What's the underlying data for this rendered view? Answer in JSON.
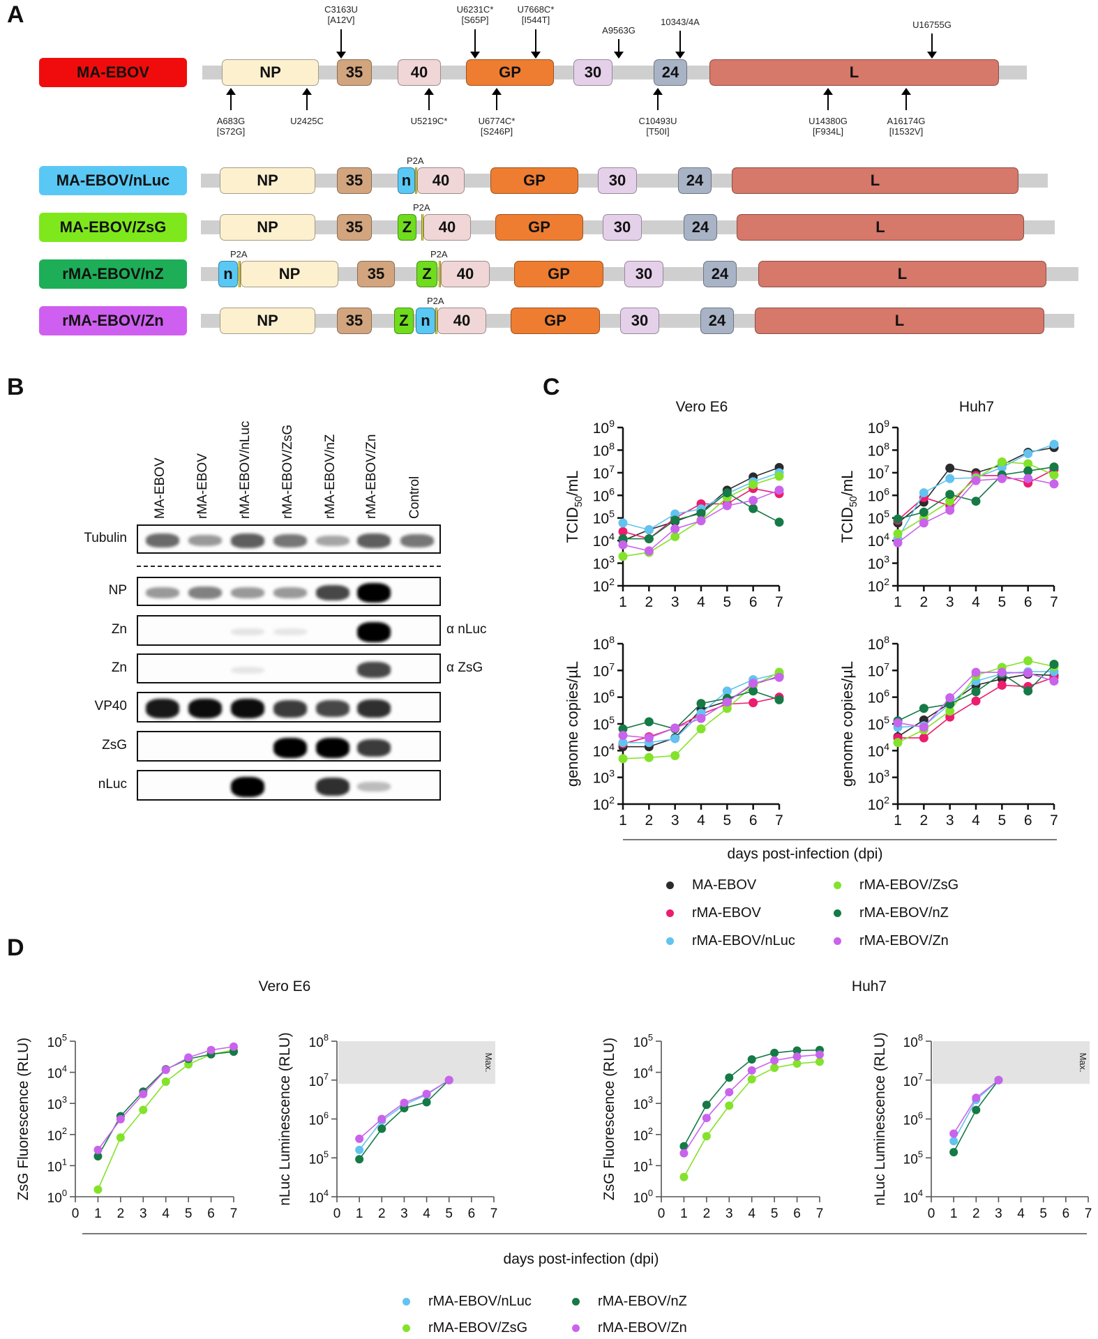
{
  "panels": {
    "a": "A",
    "b": "B",
    "c": "C",
    "d": "D"
  },
  "colors": {
    "MA-EBOV": "#2b2b2b",
    "rMA-EBOV": "#ec1c6e",
    "rMA-EBOV/nLuc": "#62c3f0",
    "rMA-EBOV/ZsG": "#83e22a",
    "rMA-EBOV/nZ": "#157a45",
    "rMA-EBOV/Zn": "#c963ec"
  },
  "panel_a": {
    "mutations_above": [
      {
        "text": "C3163U",
        "sub": "[A12V]"
      },
      {
        "text": "U6231C*",
        "sub": "[S65P]"
      },
      {
        "text": "U7668C*",
        "sub": "[I544T]"
      },
      {
        "text": "A9563G",
        "sub": ""
      },
      {
        "text": "10343/4A",
        "sub": ""
      },
      {
        "text": "U16755G",
        "sub": ""
      }
    ],
    "mutations_below": [
      {
        "text": "A683G",
        "sub": "[S72G]"
      },
      {
        "text": "U2425C",
        "sub": ""
      },
      {
        "text": "U5219C*",
        "sub": ""
      },
      {
        "text": "U6774C*",
        "sub": "[S246P]"
      },
      {
        "text": "C10493U",
        "sub": "[T50I]"
      },
      {
        "text": "U14380G",
        "sub": "[F934L]"
      },
      {
        "text": "A16174G",
        "sub": "[I1532V]"
      }
    ],
    "p2a_label": "P2A",
    "constructs": [
      {
        "name": "MA-EBOV",
        "color": "#f00c0c",
        "genes": [
          "NP",
          "35",
          "40",
          "GP",
          "30",
          "24",
          "L"
        ]
      },
      {
        "name": "MA-EBOV/nLuc",
        "color": "#5ac8f5",
        "genes": [
          "NP",
          "35",
          "n",
          "40",
          "GP",
          "30",
          "24",
          "L"
        ]
      },
      {
        "name": "MA-EBOV/ZsG",
        "color": "#7ee81c",
        "genes": [
          "NP",
          "35",
          "Z",
          "40",
          "GP",
          "30",
          "24",
          "L"
        ]
      },
      {
        "name": "rMA-EBOV/nZ",
        "color": "#1dae57",
        "genes": [
          "n",
          "NP",
          "35",
          "Z",
          "40",
          "GP",
          "30",
          "24",
          "L"
        ]
      },
      {
        "name": "rMA-EBOV/Zn",
        "color": "#cf5ff0",
        "genes": [
          "NP",
          "35",
          "Z",
          "n",
          "40",
          "GP",
          "30",
          "24",
          "L"
        ]
      }
    ],
    "gene_colors": {
      "NP": "#fdf0cf",
      "35": "#d2a57e",
      "40": "#f0d6d6",
      "GP": "#ee7d31",
      "30": "#e5d0ea",
      "24": "#a8b3c6",
      "L": "#d6786a",
      "n": "#5ac8f5",
      "Z": "#6fdc1d"
    }
  },
  "panel_b": {
    "lanes": [
      "MA-EBOV",
      "rMA-EBOV",
      "rMA-EBOV/nLuc",
      "rMA-EBOV/ZsG",
      "rMA-EBOV/nZ",
      "rMA-EBOV/Zn",
      "Control"
    ],
    "rows": [
      {
        "label": "Tubulin",
        "side": "",
        "intensity": [
          0.55,
          0.35,
          0.6,
          0.5,
          0.3,
          0.6,
          0.5
        ]
      },
      {
        "label": "NP",
        "side": "",
        "intensity": [
          0.35,
          0.45,
          0.35,
          0.35,
          0.7,
          1.0,
          0
        ]
      },
      {
        "label": "Zn",
        "side": "α nLuc",
        "intensity": [
          0,
          0,
          0.03,
          0.02,
          0,
          1.0,
          0
        ]
      },
      {
        "label": "Zn",
        "side": "α ZsG",
        "intensity": [
          0,
          0,
          0.02,
          0,
          0,
          0.7,
          0
        ]
      },
      {
        "label": "VP40",
        "side": "",
        "intensity": [
          0.9,
          0.95,
          0.95,
          0.75,
          0.7,
          0.8,
          0
        ]
      },
      {
        "label": "ZsG",
        "side": "",
        "intensity": [
          0,
          0,
          0,
          1.0,
          1.0,
          0.75,
          0
        ]
      },
      {
        "label": "nLuc",
        "side": "",
        "intensity": [
          0,
          0,
          1.0,
          0,
          0.8,
          0.2,
          0
        ]
      }
    ]
  },
  "panel_c": {
    "xlabel": "days post-infection (dpi)",
    "legend": [
      "MA-EBOV",
      "rMA-EBOV",
      "rMA-EBOV/nLuc",
      "rMA-EBOV/ZsG",
      "rMA-EBOV/nZ",
      "rMA-EBOV/Zn"
    ]
  },
  "panel_d": {
    "xlabel": "days post-infection (dpi)",
    "titles": [
      "Vero E6",
      "Huh7"
    ],
    "max_label": "Max.",
    "legend": [
      "rMA-EBOV/nLuc",
      "rMA-EBOV/nZ",
      "rMA-EBOV/ZsG",
      "rMA-EBOV/Zn"
    ]
  },
  "chart_data": [
    {
      "type": "line",
      "title": "Vero E6",
      "ylabel": "TCID50/mL",
      "xlabel": "days post-infection (dpi)",
      "yscale": "log",
      "ylim": [
        100,
        1000000000
      ],
      "x": [
        1,
        2,
        3,
        4,
        5,
        6,
        7
      ],
      "series": [
        {
          "name": "MA-EBOV",
          "values": [
            10000,
            30000,
            70000,
            180000,
            1700000,
            6500000,
            17000000
          ]
        },
        {
          "name": "rMA-EBOV",
          "values": [
            25000,
            12000,
            100000,
            420000,
            420000,
            2000000,
            1200000
          ]
        },
        {
          "name": "rMA-EBOV/nLuc",
          "values": [
            60000,
            30000,
            150000,
            250000,
            1200000,
            4000000,
            10000000
          ]
        },
        {
          "name": "rMA-EBOV/ZsG",
          "values": [
            2000,
            3000,
            15000,
            80000,
            800000,
            3000000,
            7000000
          ]
        },
        {
          "name": "rMA-EBOV/nZ",
          "values": [
            12000,
            12000,
            80000,
            160000,
            1300000,
            260000,
            65000
          ]
        },
        {
          "name": "rMA-EBOV/Zn",
          "values": [
            6500,
            3500,
            33000,
            75000,
            350000,
            600000,
            1700000
          ]
        }
      ]
    },
    {
      "type": "line",
      "title": "Huh7",
      "ylabel": "TCID50/mL",
      "xlabel": "days post-infection (dpi)",
      "yscale": "log",
      "ylim": [
        100,
        1000000000
      ],
      "x": [
        1,
        2,
        3,
        4,
        5,
        6,
        7
      ],
      "series": [
        {
          "name": "MA-EBOV",
          "values": [
            60000,
            500000,
            16000000,
            10000000,
            22000000,
            80000000,
            130000000
          ]
        },
        {
          "name": "rMA-EBOV",
          "values": [
            80000,
            800000,
            350000,
            7500000,
            7500000,
            3500000,
            14000000
          ]
        },
        {
          "name": "rMA-EBOV/nLuc",
          "values": [
            12000,
            1300000,
            5500000,
            6000000,
            17000000,
            70000000,
            180000000
          ]
        },
        {
          "name": "rMA-EBOV/ZsG",
          "values": [
            20000,
            100000,
            550000,
            5500000,
            30000000,
            25000000,
            8000000
          ]
        },
        {
          "name": "rMA-EBOV/nZ",
          "values": [
            90000,
            180000,
            1100000,
            550000,
            8000000,
            12000000,
            18000000
          ]
        },
        {
          "name": "rMA-EBOV/Zn",
          "values": [
            8000,
            60000,
            220000,
            4500000,
            5500000,
            5500000,
            3200000
          ]
        }
      ]
    },
    {
      "type": "line",
      "title": "Vero E6",
      "ylabel": "genome copies/µL",
      "xlabel": "days post-infection (dpi)",
      "yscale": "log",
      "ylim": [
        100,
        100000000
      ],
      "x": [
        1,
        2,
        3,
        4,
        5,
        6,
        7
      ],
      "series": [
        {
          "name": "MA-EBOV",
          "values": [
            14000,
            14000,
            30000,
            350000,
            700000,
            3000000,
            6000000
          ]
        },
        {
          "name": "rMA-EBOV",
          "values": [
            18000,
            33000,
            70000,
            230000,
            550000,
            620000,
            1000000
          ]
        },
        {
          "name": "rMA-EBOV/nLuc",
          "values": [
            20000,
            20000,
            28000,
            250000,
            1700000,
            4500000,
            7500000
          ]
        },
        {
          "name": "rMA-EBOV/ZsG",
          "values": [
            5000,
            5500,
            6500,
            65000,
            380000,
            2700000,
            8500000
          ]
        },
        {
          "name": "rMA-EBOV/nZ",
          "values": [
            65000,
            120000,
            65000,
            580000,
            900000,
            1700000,
            800000
          ]
        },
        {
          "name": "rMA-EBOV/Zn",
          "values": [
            37000,
            30000,
            70000,
            160000,
            650000,
            3300000,
            5500000
          ]
        }
      ]
    },
    {
      "type": "line",
      "title": "Huh7",
      "ylabel": "genome copies/µL",
      "xlabel": "days post-infection (dpi)",
      "yscale": "log",
      "ylim": [
        100,
        100000000
      ],
      "x": [
        1,
        2,
        3,
        4,
        5,
        6,
        7
      ],
      "series": [
        {
          "name": "MA-EBOV",
          "values": [
            33000,
            140000,
            600000,
            2800000,
            4800000,
            7200000,
            6500000
          ]
        },
        {
          "name": "rMA-EBOV",
          "values": [
            30000,
            30000,
            180000,
            720000,
            2800000,
            2500000,
            5500000
          ]
        },
        {
          "name": "rMA-EBOV/nLuc",
          "values": [
            75000,
            85000,
            550000,
            4000000,
            7500000,
            9000000,
            9000000
          ]
        },
        {
          "name": "rMA-EBOV/ZsG",
          "values": [
            20000,
            60000,
            300000,
            6500000,
            13000000,
            23000000,
            14000000
          ]
        },
        {
          "name": "rMA-EBOV/nZ",
          "values": [
            130000,
            380000,
            550000,
            1600000,
            7500000,
            1700000,
            17000000
          ]
        },
        {
          "name": "rMA-EBOV/Zn",
          "values": [
            110000,
            75000,
            950000,
            8500000,
            8500000,
            8000000,
            4000000
          ]
        }
      ]
    },
    {
      "type": "line",
      "title": "Vero E6",
      "ylabel": "ZsG Fluorescence (RLU)",
      "xlabel": "days post-infection (dpi)",
      "yscale": "log",
      "ylim": [
        1,
        100000
      ],
      "xlim": [
        0,
        7
      ],
      "x": [
        1,
        2,
        3,
        4,
        5,
        6,
        7
      ],
      "series": [
        {
          "name": "rMA-EBOV/ZsG",
          "values": [
            1.7,
            80,
            620,
            5000,
            18000,
            38000,
            52000
          ]
        },
        {
          "name": "rMA-EBOV/nZ",
          "values": [
            20,
            390,
            2400,
            12500,
            27000,
            38000,
            46000
          ]
        },
        {
          "name": "rMA-EBOV/Zn",
          "values": [
            32,
            310,
            2000,
            12000,
            30000,
            52000,
            67000
          ]
        }
      ]
    },
    {
      "type": "line",
      "title": "Vero E6",
      "ylabel": "nLuc Luminescence (RLU)",
      "xlabel": "days post-infection (dpi)",
      "yscale": "log",
      "ylim": [
        10000,
        100000000
      ],
      "xlim": [
        0,
        7
      ],
      "shaded_max_range": [
        8000000,
        100000000
      ],
      "x": [
        1,
        2,
        3,
        4,
        5
      ],
      "series": [
        {
          "name": "rMA-EBOV/nLuc",
          "values": [
            160000,
            900000,
            2300000,
            4200000,
            10000000
          ]
        },
        {
          "name": "rMA-EBOV/nZ",
          "values": [
            92000,
            560000,
            1900000,
            2700000,
            10000000
          ]
        },
        {
          "name": "rMA-EBOV/Zn",
          "values": [
            310000,
            1000000,
            2600000,
            4400000,
            10000000
          ]
        }
      ]
    },
    {
      "type": "line",
      "title": "Huh7",
      "ylabel": "ZsG Fluorescence (RLU)",
      "xlabel": "days post-infection (dpi)",
      "yscale": "log",
      "ylim": [
        1,
        100000
      ],
      "xlim": [
        0,
        7
      ],
      "x": [
        1,
        2,
        3,
        4,
        5,
        6,
        7
      ],
      "series": [
        {
          "name": "rMA-EBOV/ZsG",
          "values": [
            4.3,
            88,
            850,
            6000,
            14000,
            19000,
            22000
          ]
        },
        {
          "name": "rMA-EBOV/nZ",
          "values": [
            42,
            900,
            6800,
            26000,
            42000,
            50000,
            52000
          ]
        },
        {
          "name": "rMA-EBOV/Zn",
          "values": [
            25,
            340,
            2300,
            11500,
            24000,
            32000,
            37000
          ]
        }
      ]
    },
    {
      "type": "line",
      "title": "Huh7",
      "ylabel": "nLuc Luminescence (RLU)",
      "xlabel": "days post-infection (dpi)",
      "yscale": "log",
      "ylim": [
        10000,
        100000000
      ],
      "xlim": [
        0,
        7
      ],
      "shaded_max_range": [
        8000000,
        100000000
      ],
      "x": [
        1,
        2,
        3
      ],
      "series": [
        {
          "name": "rMA-EBOV/nLuc",
          "values": [
            270000,
            3100000,
            10000000
          ]
        },
        {
          "name": "rMA-EBOV/nZ",
          "values": [
            140000,
            1700000,
            10000000
          ]
        },
        {
          "name": "rMA-EBOV/Zn",
          "values": [
            420000,
            3500000,
            10000000
          ]
        }
      ]
    }
  ]
}
